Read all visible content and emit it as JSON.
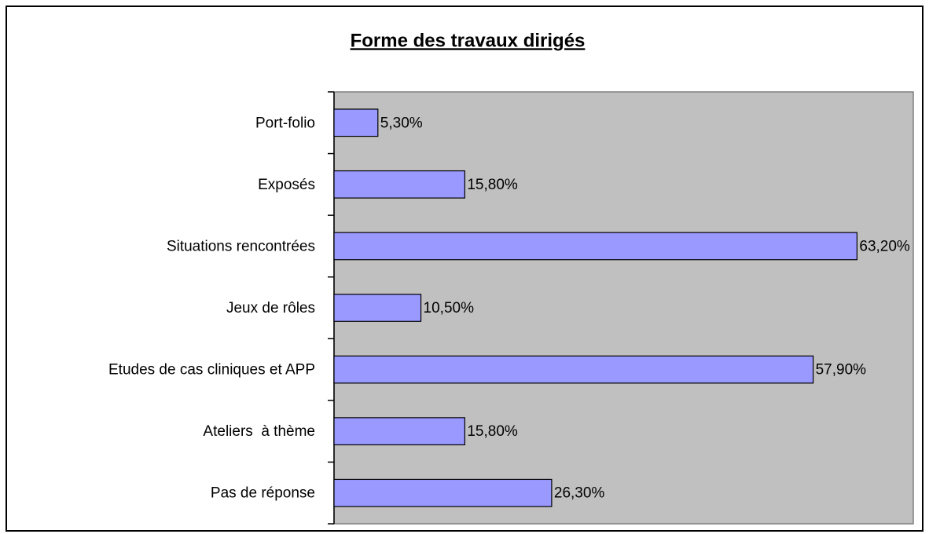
{
  "chart_data": {
    "type": "bar",
    "orientation": "horizontal",
    "title": "Forme des travaux dirigés",
    "categories": [
      "Port-folio",
      "Exposés",
      "Situations rencontrées",
      "Jeux de rôles",
      "Etudes de cas cliniques et APP",
      "Ateliers  à thème",
      "Pas de réponse"
    ],
    "values": [
      5.3,
      15.8,
      63.2,
      10.5,
      57.9,
      15.8,
      26.3
    ],
    "value_labels": [
      "5,30%",
      "15,80%",
      "63,20%",
      "10,50%",
      "57,90%",
      "15,80%",
      "26,30%"
    ],
    "color": "#9999ff",
    "plot_background": "#c0c0c0",
    "xlim": [
      0,
      70
    ]
  }
}
